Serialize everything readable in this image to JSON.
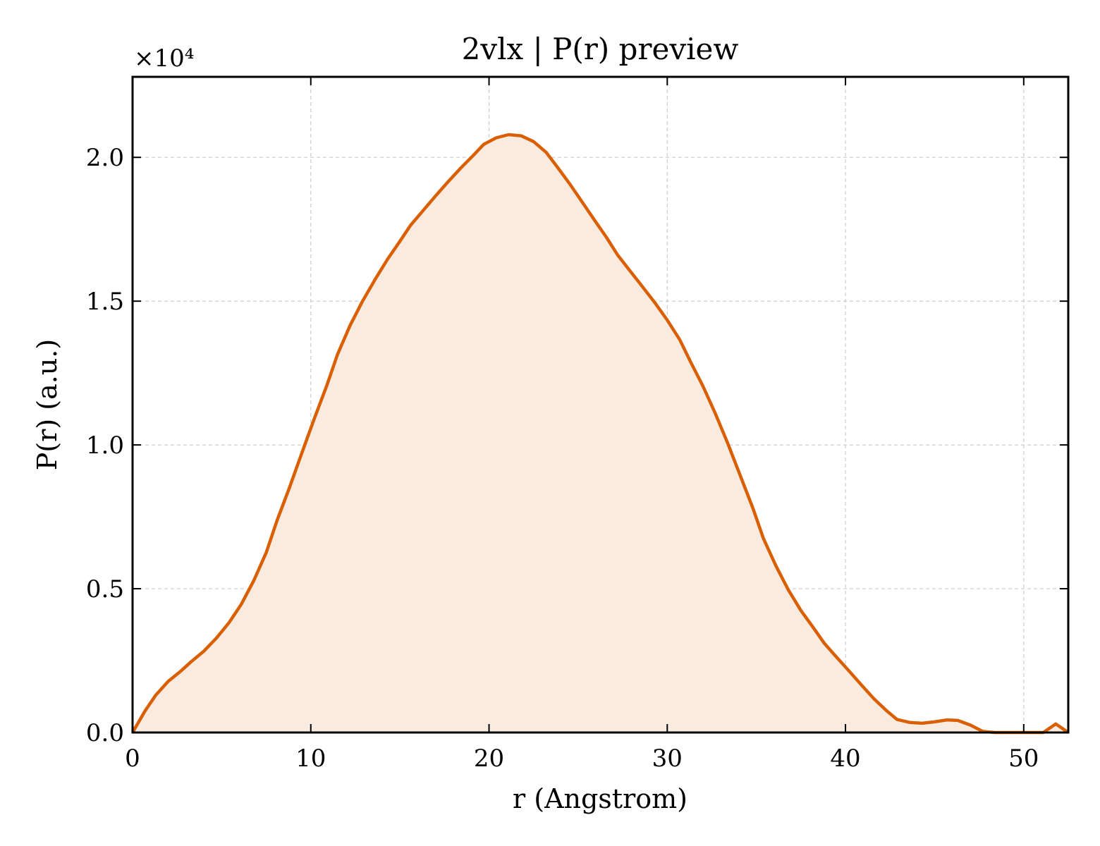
{
  "chart_data": {
    "type": "area",
    "title": "2vlx | P(r) preview",
    "xlabel": "r (Angstrom)",
    "ylabel": "P(r) (a.u.)",
    "y_offset_label": "×10⁴",
    "y_scale": 10000,
    "xlim": [
      0,
      52.5
    ],
    "ylim": [
      0,
      22800
    ],
    "x_ticks": [
      0,
      10,
      20,
      30,
      40,
      50
    ],
    "x_tick_labels": [
      "0",
      "10",
      "20",
      "30",
      "40",
      "50"
    ],
    "y_ticks": [
      0,
      5000,
      10000,
      15000,
      20000
    ],
    "y_tick_labels": [
      "0.0",
      "0.5",
      "1.0",
      "1.5",
      "2.0"
    ],
    "grid": true,
    "line_color": "#d95f02",
    "fill_color": "#f9ebe0",
    "series": [
      {
        "x": [
          0,
          0.7,
          1.3,
          2.0,
          2.7,
          3.3,
          4.0,
          4.7,
          5.4,
          6.1,
          6.8,
          7.5,
          8.1,
          8.8,
          9.5,
          10.2,
          10.9,
          11.5,
          12.2,
          12.9,
          13.6,
          14.3,
          15.0,
          15.6,
          16.3,
          17.0,
          17.7,
          18.4,
          19.1,
          19.7,
          20.4,
          21.1,
          21.8,
          22.5,
          23.2,
          23.8,
          24.5,
          25.2,
          25.9,
          26.6,
          27.2,
          27.9,
          28.6,
          29.3,
          30.0,
          30.7,
          31.3,
          32.0,
          32.7,
          33.4,
          34.1,
          34.8,
          35.4,
          36.1,
          36.8,
          37.5,
          38.2,
          38.8,
          39.5,
          40.2,
          40.9,
          41.6,
          42.3,
          42.9,
          43.6,
          44.3,
          45.0,
          45.7,
          46.3,
          47.0,
          47.7,
          48.4,
          49.1,
          49.4,
          51.1,
          51.8,
          52.5
        ],
        "y": [
          0,
          750,
          1300,
          1780,
          2130,
          2470,
          2830,
          3280,
          3810,
          4460,
          5280,
          6260,
          7360,
          8510,
          9720,
          10920,
          12070,
          13150,
          14150,
          15000,
          15750,
          16450,
          17080,
          17640,
          18150,
          18660,
          19150,
          19620,
          20060,
          20450,
          20680,
          20790,
          20750,
          20550,
          20180,
          19690,
          19100,
          18470,
          17830,
          17210,
          16620,
          16060,
          15510,
          14950,
          14340,
          13660,
          12900,
          12050,
          11090,
          10050,
          8930,
          7810,
          6740,
          5790,
          4950,
          4240,
          3640,
          3110,
          2620,
          2140,
          1650,
          1170,
          760,
          450,
          350,
          320,
          370,
          440,
          420,
          260,
          40,
          0,
          0,
          0,
          0,
          300,
          0
        ]
      }
    ]
  }
}
